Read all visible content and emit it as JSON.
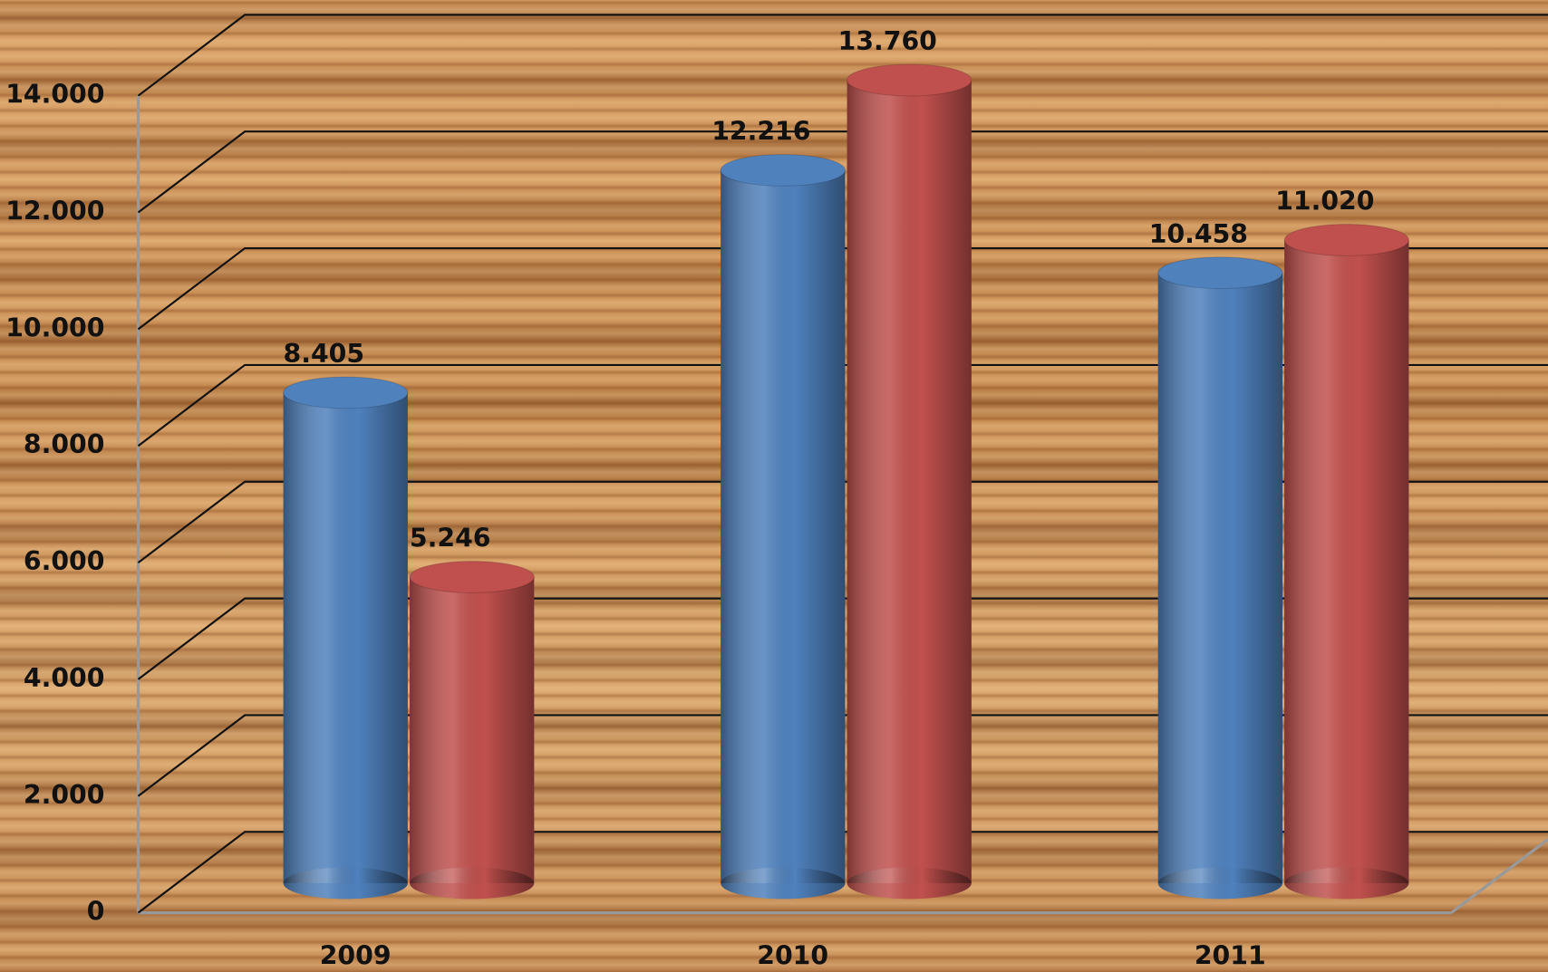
{
  "chart_data": {
    "type": "bar",
    "categories": [
      "2009",
      "2010",
      "2011"
    ],
    "series": [
      {
        "color": "#4f81bd",
        "values": [
          8405,
          12216,
          10458
        ],
        "value_labels": [
          "8.405",
          "12.216",
          "10.458"
        ]
      },
      {
        "color": "#c0504d",
        "values": [
          5246,
          13760,
          11020
        ],
        "value_labels": [
          "5.246",
          "13.760",
          "11.020"
        ]
      }
    ],
    "ylim": [
      0,
      14000
    ],
    "yticks": [
      0,
      {
        "value": 2000,
        "label": "2.000"
      },
      {
        "value": 4000,
        "label": "4.000"
      },
      {
        "value": 6000,
        "label": "6.000"
      },
      {
        "value": 8000,
        "label": "8.000"
      },
      {
        "value": 10000,
        "label": "10.000"
      },
      {
        "value": 12000,
        "label": "12.000"
      },
      {
        "value": 14000,
        "label": "14.000"
      }
    ],
    "grid": true
  }
}
